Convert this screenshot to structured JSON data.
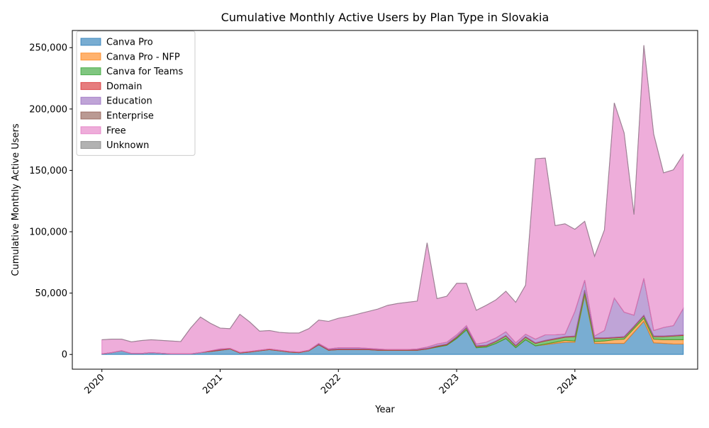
{
  "chart_data": {
    "type": "area",
    "stacked": true,
    "title": "Cumulative Monthly Active Users by Plan Type in Slovakia",
    "xlabel": "Year",
    "ylabel": "Cumulative Monthly Active Users",
    "x_ticks": [
      "2020",
      "2021",
      "2022",
      "2023",
      "2024"
    ],
    "y_ticks": [
      "0",
      "50,000",
      "100,000",
      "150,000",
      "200,000",
      "250,000"
    ],
    "ylim": [
      -12000,
      264000
    ],
    "xlim": [
      "2019-10-01",
      "2025-01-15"
    ],
    "legend_position": "upper-left",
    "x": [
      "2020-01",
      "2020-02",
      "2020-03",
      "2020-04",
      "2020-05",
      "2020-06",
      "2020-07",
      "2020-08",
      "2020-09",
      "2020-10",
      "2020-11",
      "2020-12",
      "2021-01",
      "2021-02",
      "2021-03",
      "2021-04",
      "2021-05",
      "2021-06",
      "2021-07",
      "2021-08",
      "2021-09",
      "2021-10",
      "2021-11",
      "2021-12",
      "2022-01",
      "2022-02",
      "2022-03",
      "2022-04",
      "2022-05",
      "2022-06",
      "2022-07",
      "2022-08",
      "2022-09",
      "2022-10",
      "2022-11",
      "2022-12",
      "2023-01",
      "2023-02",
      "2023-03",
      "2023-04",
      "2023-05",
      "2023-06",
      "2023-07",
      "2023-08",
      "2023-09",
      "2023-10",
      "2023-11",
      "2023-12",
      "2024-01",
      "2024-02",
      "2024-03",
      "2024-04",
      "2024-05",
      "2024-06",
      "2024-07",
      "2024-08",
      "2024-09",
      "2024-10",
      "2024-11",
      "2024-12"
    ],
    "series": [
      {
        "name": "Canva Pro",
        "color": "#1f77b4",
        "values": [
          500,
          1500,
          3000,
          800,
          800,
          1500,
          1000,
          500,
          500,
          500,
          1500,
          2500,
          3500,
          4500,
          1200,
          2000,
          3000,
          4000,
          3000,
          2000,
          1500,
          3000,
          8000,
          3500,
          4000,
          4000,
          4000,
          4000,
          3500,
          3500,
          3500,
          3500,
          3500,
          4500,
          6000,
          7500,
          13000,
          20000,
          5500,
          6000,
          9000,
          13000,
          5500,
          12000,
          7000,
          8000,
          9000,
          10000,
          10000,
          48000,
          9000,
          9000,
          9000,
          9000,
          18000,
          27000,
          9500,
          9000,
          8500,
          8500
        ]
      },
      {
        "name": "Canva Pro - NFP",
        "color": "#ff7f0e",
        "values": [
          0,
          0,
          0,
          0,
          0,
          0,
          0,
          0,
          0,
          0,
          0,
          0,
          0,
          0,
          0,
          0,
          0,
          0,
          0,
          0,
          0,
          0,
          0,
          0,
          0,
          0,
          0,
          0,
          0,
          0,
          0,
          0,
          0,
          0,
          0,
          0,
          0,
          0,
          0,
          0,
          0,
          0,
          0,
          0,
          0,
          500,
          1000,
          1500,
          1000,
          1500,
          1500,
          2000,
          3000,
          3500,
          3000,
          2500,
          3000,
          3000,
          3500,
          3500
        ]
      },
      {
        "name": "Canva for Teams",
        "color": "#2ca02c",
        "values": [
          0,
          0,
          0,
          0,
          0,
          0,
          0,
          0,
          0,
          0,
          0,
          0,
          0,
          0,
          0,
          0,
          0,
          0,
          0,
          0,
          0,
          0,
          0,
          0,
          0,
          0,
          0,
          0,
          0,
          0,
          0,
          0,
          0,
          0,
          500,
          500,
          1000,
          1500,
          1000,
          1000,
          1500,
          2000,
          1500,
          2000,
          2000,
          2500,
          2500,
          2500,
          3500,
          2500,
          2500,
          2000,
          1500,
          1500,
          1500,
          2000,
          2000,
          2500,
          3000,
          3500
        ]
      },
      {
        "name": "Domain",
        "color": "#d62728",
        "values": [
          0,
          0,
          0,
          0,
          0,
          0,
          0,
          0,
          0,
          0,
          0,
          500,
          500,
          500,
          500,
          500,
          500,
          500,
          500,
          500,
          500,
          500,
          500,
          500,
          500,
          500,
          500,
          500,
          500,
          500,
          500,
          500,
          500,
          500,
          500,
          500,
          500,
          500,
          500,
          500,
          500,
          500,
          500,
          500,
          500,
          500,
          500,
          500,
          500,
          500,
          500,
          500,
          500,
          500,
          500,
          500,
          500,
          500,
          500,
          500
        ]
      },
      {
        "name": "Education",
        "color": "#9467bd",
        "values": [
          0,
          0,
          0,
          0,
          0,
          0,
          0,
          0,
          0,
          0,
          0,
          0,
          500,
          0,
          0,
          0,
          0,
          0,
          0,
          0,
          0,
          0,
          500,
          500,
          1000,
          1000,
          1000,
          500,
          500,
          0,
          0,
          0,
          500,
          1000,
          1500,
          1500,
          1500,
          1500,
          1500,
          2500,
          2500,
          3000,
          2000,
          2000,
          3000,
          4500,
          3000,
          2000,
          20000,
          8000,
          1500,
          6000,
          32000,
          20000,
          9000,
          30000,
          4500,
          7000,
          8000,
          21500
        ]
      },
      {
        "name": "Enterprise",
        "color": "#8c564b",
        "values": [
          0,
          0,
          0,
          0,
          0,
          0,
          0,
          0,
          0,
          0,
          0,
          0,
          0,
          0,
          0,
          0,
          0,
          0,
          0,
          0,
          0,
          0,
          0,
          0,
          0,
          0,
          0,
          0,
          0,
          0,
          0,
          0,
          0,
          0,
          0,
          0,
          0,
          0,
          0,
          0,
          0,
          0,
          0,
          0,
          0,
          0,
          0,
          0,
          0,
          0,
          0,
          0,
          0,
          0,
          0,
          0,
          0,
          0,
          0,
          0
        ]
      },
      {
        "name": "Free",
        "color": "#e377c2",
        "values": [
          11500,
          11000,
          9500,
          9500,
          10500,
          10500,
          10500,
          10500,
          10000,
          21000,
          29000,
          22500,
          17000,
          16000,
          31000,
          24000,
          15500,
          15000,
          14500,
          15000,
          15500,
          17500,
          19000,
          22500,
          24000,
          25500,
          27500,
          30000,
          32500,
          36000,
          37500,
          38500,
          39000,
          85000,
          37000,
          37500,
          42000,
          34500,
          27500,
          30000,
          31000,
          33000,
          33000,
          40000,
          147000,
          144000,
          89000,
          90000,
          67000,
          48000,
          65000,
          82000,
          159000,
          146000,
          82000,
          190000,
          160000,
          126000,
          127000,
          125500
        ]
      },
      {
        "name": "Unknown",
        "color": "#7f7f7f",
        "values": [
          0,
          0,
          0,
          0,
          0,
          0,
          0,
          0,
          0,
          0,
          0,
          0,
          0,
          0,
          0,
          0,
          0,
          0,
          0,
          0,
          0,
          0,
          0,
          0,
          0,
          0,
          0,
          0,
          0,
          0,
          0,
          0,
          0,
          0,
          0,
          0,
          0,
          0,
          0,
          0,
          0,
          0,
          0,
          0,
          0,
          0,
          0,
          0,
          0,
          0,
          0,
          0,
          0,
          0,
          0,
          0,
          0,
          0,
          0,
          0
        ]
      }
    ]
  }
}
